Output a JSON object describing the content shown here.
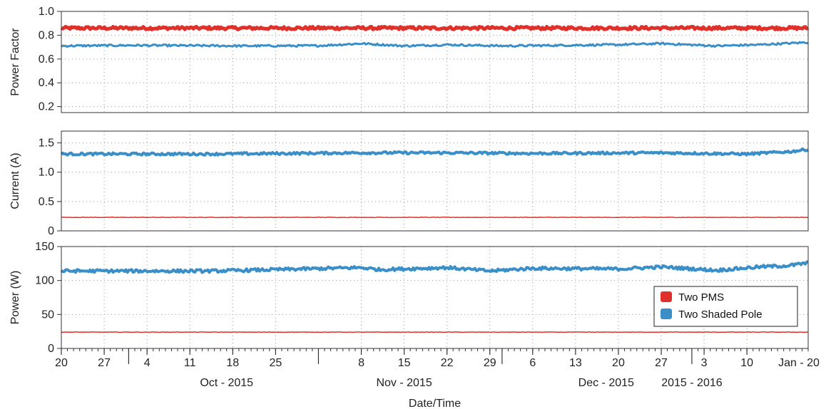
{
  "chart_data": {
    "type": "line",
    "x_range": [
      "2015-09-20",
      "2016-01-20"
    ],
    "x_axis": {
      "label": "Date/Time",
      "day_ticks": [
        {
          "date": "2015-09-20",
          "label": "20"
        },
        {
          "date": "2015-09-27",
          "label": "27"
        },
        {
          "date": "2015-10-04",
          "label": "4"
        },
        {
          "date": "2015-10-11",
          "label": "11"
        },
        {
          "date": "2015-10-18",
          "label": "18"
        },
        {
          "date": "2015-10-25",
          "label": "25"
        },
        {
          "date": "2015-11-08",
          "label": "8"
        },
        {
          "date": "2015-11-15",
          "label": "15"
        },
        {
          "date": "2015-11-22",
          "label": "22"
        },
        {
          "date": "2015-11-29",
          "label": "29"
        },
        {
          "date": "2015-12-06",
          "label": "6"
        },
        {
          "date": "2015-12-13",
          "label": "13"
        },
        {
          "date": "2015-12-20",
          "label": "20"
        },
        {
          "date": "2015-12-27",
          "label": "27"
        },
        {
          "date": "2016-01-03",
          "label": "3"
        },
        {
          "date": "2016-01-10",
          "label": "10"
        }
      ],
      "end_label": "Jan - 20",
      "month_labels": [
        {
          "date": "2015-10-17",
          "label": "Oct - 2015"
        },
        {
          "date": "2015-11-15",
          "label": "Nov - 2015"
        },
        {
          "date": "2015-12-18",
          "label": "Dec - 2015"
        },
        {
          "date": "2016-01-01",
          "label": "2015 - 2016"
        }
      ],
      "month_boundaries": [
        "2015-10-01",
        "2015-11-01",
        "2015-12-01",
        "2016-01-01"
      ]
    },
    "panels": [
      {
        "ylabel": "Power Factor",
        "ylim": [
          0.15,
          1.0
        ],
        "yticks": [
          0.2,
          0.4,
          0.6,
          0.8,
          1.0
        ],
        "ytick_labels": [
          "0.2",
          "0.4",
          "0.6",
          "0.8",
          "1.0"
        ],
        "series": [
          {
            "key": "pms",
            "dates": [
              "2015-09-20",
              "2015-10-10",
              "2015-11-01",
              "2015-11-22",
              "2015-12-15",
              "2016-01-05",
              "2016-01-20"
            ],
            "values": [
              0.86,
              0.86,
              0.86,
              0.86,
              0.86,
              0.86,
              0.86
            ],
            "noise": 0.012,
            "stroke": 5
          },
          {
            "key": "shaded",
            "dates": [
              "2015-09-20",
              "2015-10-01",
              "2015-10-20",
              "2015-11-01",
              "2015-11-08",
              "2015-11-15",
              "2015-11-22",
              "2015-12-01",
              "2015-12-20",
              "2015-12-27",
              "2016-01-05",
              "2016-01-12",
              "2016-01-20"
            ],
            "values": [
              0.71,
              0.715,
              0.71,
              0.712,
              0.73,
              0.71,
              0.72,
              0.71,
              0.72,
              0.73,
              0.71,
              0.72,
              0.74
            ],
            "noise": 0.008,
            "stroke": 3
          }
        ]
      },
      {
        "ylabel": "Current (A)",
        "ylim": [
          0,
          1.7
        ],
        "yticks": [
          0,
          0.5,
          1.0,
          1.5
        ],
        "ytick_labels": [
          "0",
          "0.5",
          "1.0",
          "1.5"
        ],
        "series": [
          {
            "key": "pms",
            "dates": [
              "2015-09-20",
              "2016-01-20"
            ],
            "values": [
              0.23,
              0.23
            ],
            "noise": 0.004,
            "stroke": 1.5
          },
          {
            "key": "shaded",
            "dates": [
              "2015-09-20",
              "2015-10-15",
              "2015-11-08",
              "2015-11-22",
              "2015-12-06",
              "2015-12-27",
              "2016-01-10",
              "2016-01-17",
              "2016-01-20"
            ],
            "values": [
              1.31,
              1.31,
              1.33,
              1.33,
              1.32,
              1.33,
              1.31,
              1.35,
              1.39
            ],
            "noise": 0.02,
            "stroke": 4
          }
        ]
      },
      {
        "ylabel": "Power (W)",
        "ylim": [
          0,
          150
        ],
        "yticks": [
          0,
          50,
          100,
          150
        ],
        "ytick_labels": [
          "0",
          "50",
          "100",
          "150"
        ],
        "series": [
          {
            "key": "pms",
            "dates": [
              "2015-09-20",
              "2016-01-20"
            ],
            "values": [
              24,
              24
            ],
            "noise": 0.3,
            "stroke": 1.5
          },
          {
            "key": "shaded",
            "dates": [
              "2015-09-20",
              "2015-10-15",
              "2015-11-08",
              "2015-11-11",
              "2015-11-22",
              "2015-11-29",
              "2015-12-06",
              "2015-12-20",
              "2015-12-27",
              "2016-01-05",
              "2016-01-12",
              "2016-01-17",
              "2016-01-20"
            ],
            "values": [
              114,
              114,
              119,
              116,
              119,
              114,
              118,
              117,
              120,
              115,
              120,
              122,
              126
            ],
            "noise": 2.2,
            "stroke": 4
          }
        ]
      }
    ],
    "legend": {
      "placement": "lower-right of bottom panel",
      "entries": [
        {
          "key": "pms",
          "name": "Two PMS",
          "color": "#e0302a"
        },
        {
          "key": "shaded",
          "name": "Two Shaded Pole",
          "color": "#3a8fc8"
        }
      ]
    },
    "grid": "dotted"
  }
}
